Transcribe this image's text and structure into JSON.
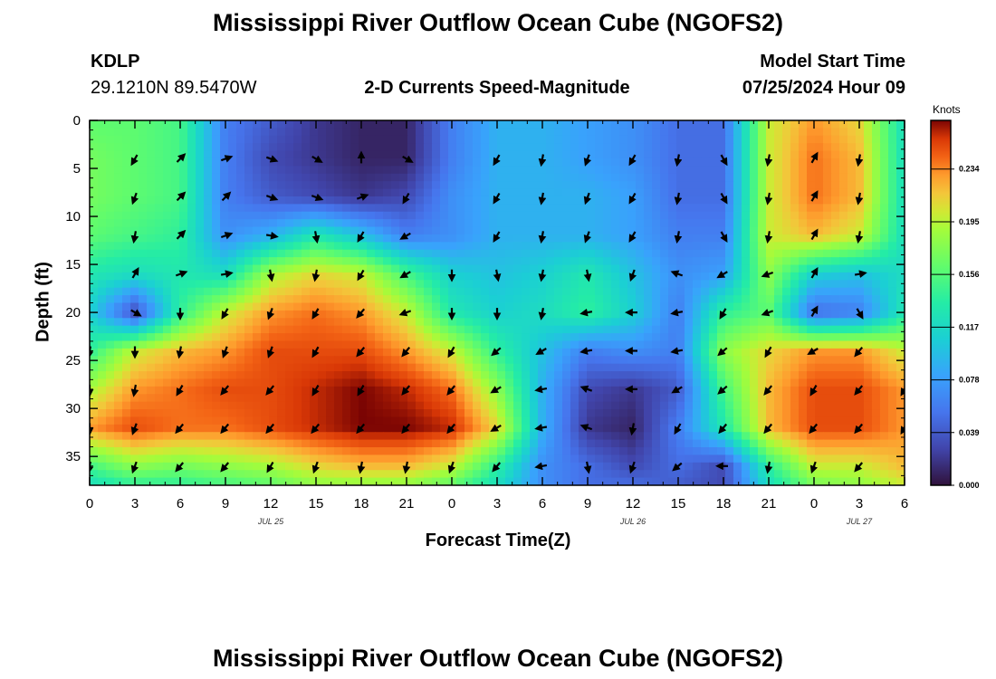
{
  "header": {
    "title": "Mississippi River Outflow Ocean Cube (NGOFS2)",
    "station_id": "KDLP",
    "coords": "29.1210N  89.5470W",
    "subtitle": "2-D Currents Speed-Magnitude",
    "model_start_label": "Model Start Time",
    "model_start_value": "07/25/2024 Hour 09",
    "footer_title": "Mississippi River Outflow Ocean Cube (NGOFS2)"
  },
  "chart_data": {
    "type": "heatmap",
    "title": "2-D Currents Speed-Magnitude",
    "xlabel": "Forecast Time(Z)",
    "ylabel": "Depth (ft)",
    "x_hours_from_start": [
      0,
      54
    ],
    "x_tick_labels": [
      "0",
      "3",
      "6",
      "9",
      "12",
      "15",
      "18",
      "21",
      "0",
      "3",
      "6",
      "9",
      "12",
      "15",
      "18",
      "21",
      "0",
      "3",
      "6"
    ],
    "date_labels": [
      {
        "label": "JUL 25",
        "hour": 12
      },
      {
        "label": "JUL 26",
        "hour": 36
      },
      {
        "label": "JUL 27",
        "hour": 51
      }
    ],
    "y_range_ft": [
      0,
      38
    ],
    "y_tick_labels": [
      "0",
      "5",
      "10",
      "15",
      "20",
      "25",
      "30",
      "35"
    ],
    "colorbar": {
      "unit": "Knots",
      "ticks": [
        "0.234",
        "0.195",
        "0.156",
        "0.117",
        "0.078",
        "0.039",
        "0.000"
      ],
      "range": [
        0,
        0.27
      ]
    },
    "depth_rows_ft": [
      0,
      4,
      8,
      12,
      16,
      20,
      24,
      28,
      32,
      36,
      38
    ],
    "time_cols_h": [
      0,
      3,
      6,
      9,
      12,
      15,
      18,
      21,
      24,
      27,
      30,
      33,
      36,
      39,
      42,
      45,
      48,
      51,
      54
    ],
    "speed_knots": [
      [
        0.16,
        0.16,
        0.15,
        0.06,
        0.04,
        0.02,
        0.01,
        0.01,
        0.06,
        0.09,
        0.09,
        0.08,
        0.07,
        0.05,
        0.05,
        0.2,
        0.23,
        0.21,
        0.12
      ],
      [
        0.17,
        0.16,
        0.15,
        0.06,
        0.03,
        0.02,
        0.01,
        0.01,
        0.06,
        0.09,
        0.09,
        0.08,
        0.07,
        0.05,
        0.05,
        0.2,
        0.24,
        0.22,
        0.12
      ],
      [
        0.17,
        0.16,
        0.15,
        0.06,
        0.04,
        0.03,
        0.02,
        0.03,
        0.07,
        0.09,
        0.09,
        0.09,
        0.08,
        0.05,
        0.05,
        0.2,
        0.24,
        0.22,
        0.12
      ],
      [
        0.16,
        0.15,
        0.14,
        0.07,
        0.09,
        0.13,
        0.1,
        0.06,
        0.07,
        0.09,
        0.09,
        0.09,
        0.08,
        0.06,
        0.06,
        0.2,
        0.22,
        0.2,
        0.12
      ],
      [
        0.13,
        0.12,
        0.13,
        0.12,
        0.19,
        0.21,
        0.2,
        0.15,
        0.11,
        0.1,
        0.11,
        0.13,
        0.1,
        0.07,
        0.08,
        0.18,
        0.11,
        0.1,
        0.12
      ],
      [
        0.11,
        0.03,
        0.14,
        0.2,
        0.23,
        0.24,
        0.23,
        0.2,
        0.13,
        0.11,
        0.12,
        0.14,
        0.11,
        0.06,
        0.14,
        0.16,
        0.05,
        0.06,
        0.13
      ],
      [
        0.14,
        0.2,
        0.22,
        0.23,
        0.25,
        0.25,
        0.25,
        0.23,
        0.2,
        0.14,
        0.1,
        0.06,
        0.07,
        0.06,
        0.18,
        0.21,
        0.23,
        0.23,
        0.2
      ],
      [
        0.19,
        0.23,
        0.24,
        0.25,
        0.25,
        0.26,
        0.27,
        0.26,
        0.24,
        0.18,
        0.09,
        0.03,
        0.02,
        0.04,
        0.15,
        0.22,
        0.25,
        0.25,
        0.23
      ],
      [
        0.23,
        0.25,
        0.24,
        0.24,
        0.25,
        0.26,
        0.27,
        0.27,
        0.26,
        0.21,
        0.09,
        0.02,
        0.01,
        0.06,
        0.13,
        0.22,
        0.25,
        0.25,
        0.23
      ],
      [
        0.15,
        0.18,
        0.17,
        0.18,
        0.19,
        0.21,
        0.22,
        0.22,
        0.2,
        0.14,
        0.07,
        0.05,
        0.03,
        0.05,
        0.03,
        0.14,
        0.2,
        0.2,
        0.22
      ],
      [
        0.12,
        0.14,
        0.14,
        0.15,
        0.16,
        0.18,
        0.18,
        0.18,
        0.16,
        0.12,
        0.07,
        0.05,
        0.05,
        0.04,
        0.03,
        0.12,
        0.17,
        0.18,
        0.2
      ]
    ],
    "arrow_depths_ft": [
      4,
      8,
      12,
      16,
      20,
      24,
      28,
      32,
      36
    ],
    "arrow_times_h": [
      0,
      3,
      6,
      9,
      12,
      15,
      18,
      21,
      24,
      27,
      30,
      33,
      36,
      39,
      42,
      45,
      48,
      51,
      54
    ],
    "arrow_dir_deg": [
      [
        null,
        120,
        315,
        340,
        20,
        30,
        270,
        30,
        null,
        120,
        100,
        110,
        120,
        100,
        60,
        100,
        300,
        100,
        null
      ],
      [
        null,
        110,
        315,
        315,
        20,
        20,
        340,
        120,
        null,
        120,
        100,
        110,
        120,
        100,
        60,
        100,
        300,
        100,
        null
      ],
      [
        null,
        100,
        315,
        340,
        10,
        80,
        120,
        150,
        null,
        120,
        100,
        110,
        120,
        100,
        60,
        100,
        300,
        100,
        null
      ],
      [
        null,
        300,
        340,
        350,
        80,
        100,
        120,
        150,
        90,
        80,
        100,
        80,
        110,
        200,
        150,
        160,
        300,
        350,
        null
      ],
      [
        null,
        30,
        90,
        120,
        110,
        120,
        130,
        160,
        90,
        90,
        100,
        170,
        180,
        170,
        120,
        160,
        300,
        60,
        null
      ],
      [
        100,
        90,
        100,
        110,
        110,
        120,
        130,
        130,
        120,
        140,
        150,
        170,
        180,
        170,
        140,
        120,
        150,
        130,
        null
      ],
      [
        90,
        100,
        120,
        130,
        130,
        120,
        120,
        130,
        130,
        150,
        170,
        200,
        180,
        150,
        140,
        130,
        120,
        130,
        120
      ],
      [
        90,
        110,
        130,
        130,
        130,
        130,
        130,
        130,
        130,
        150,
        170,
        200,
        100,
        120,
        130,
        130,
        130,
        130,
        120
      ],
      [
        100,
        110,
        130,
        130,
        120,
        110,
        100,
        100,
        110,
        130,
        170,
        80,
        110,
        140,
        180,
        100,
        110,
        130,
        null
      ]
    ]
  }
}
